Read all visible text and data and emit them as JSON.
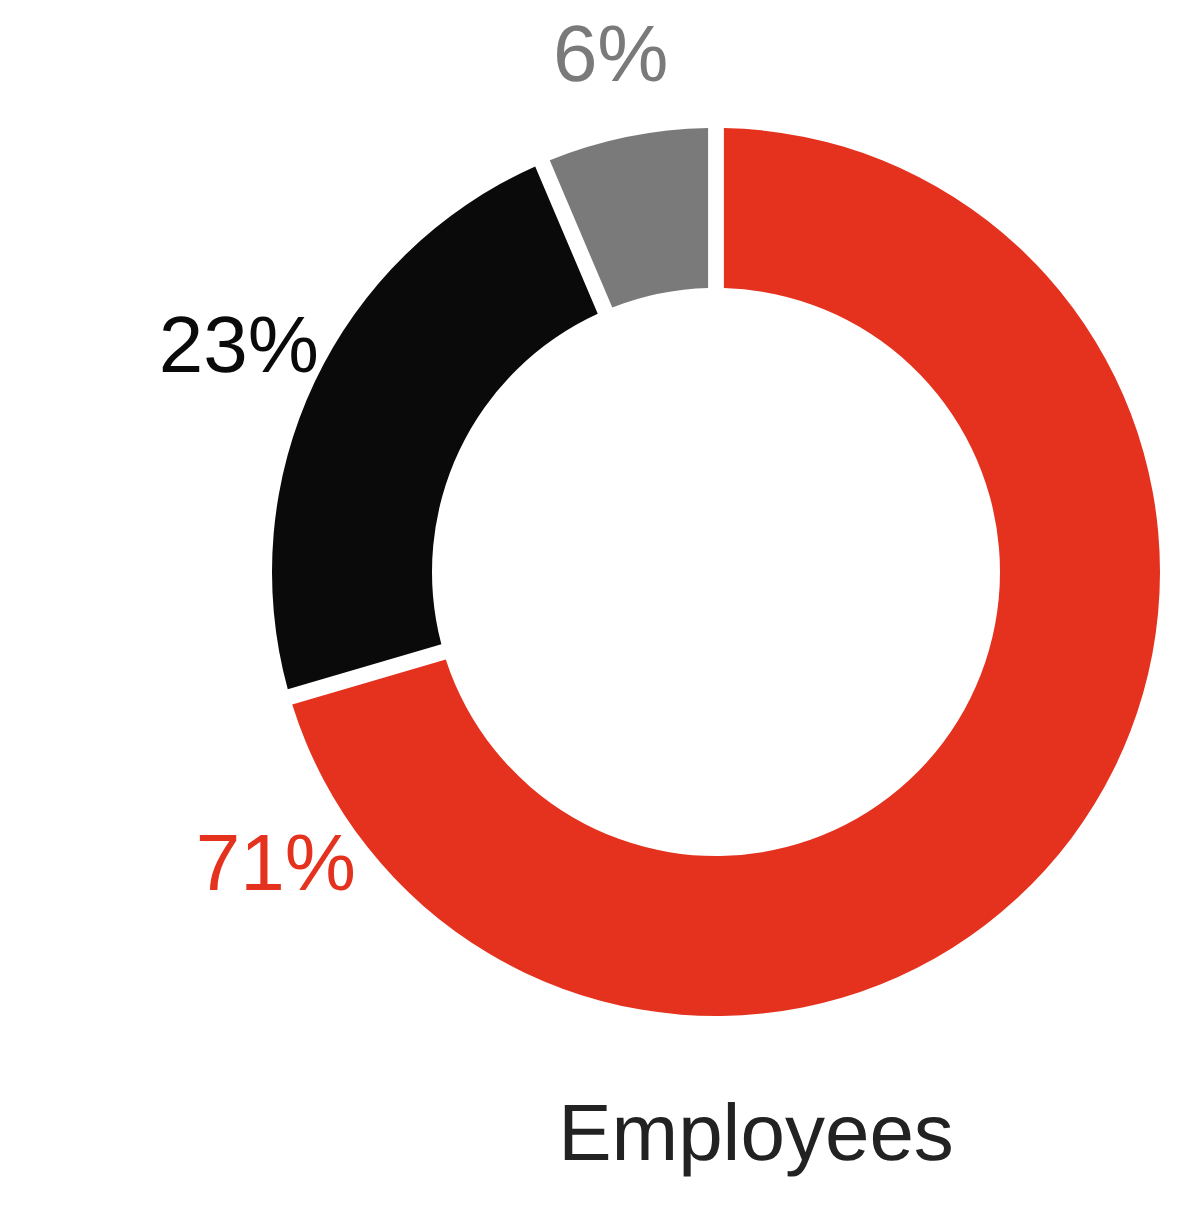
{
  "chart_data": {
    "type": "donut",
    "title": "Employees",
    "categories": [
      null,
      null,
      null
    ],
    "values": [
      71,
      23,
      6
    ],
    "colors": [
      "#e5321f",
      "#0a0a0a",
      "#7a7a7a"
    ],
    "value_labels": [
      "71%",
      "23%",
      "6%"
    ]
  }
}
